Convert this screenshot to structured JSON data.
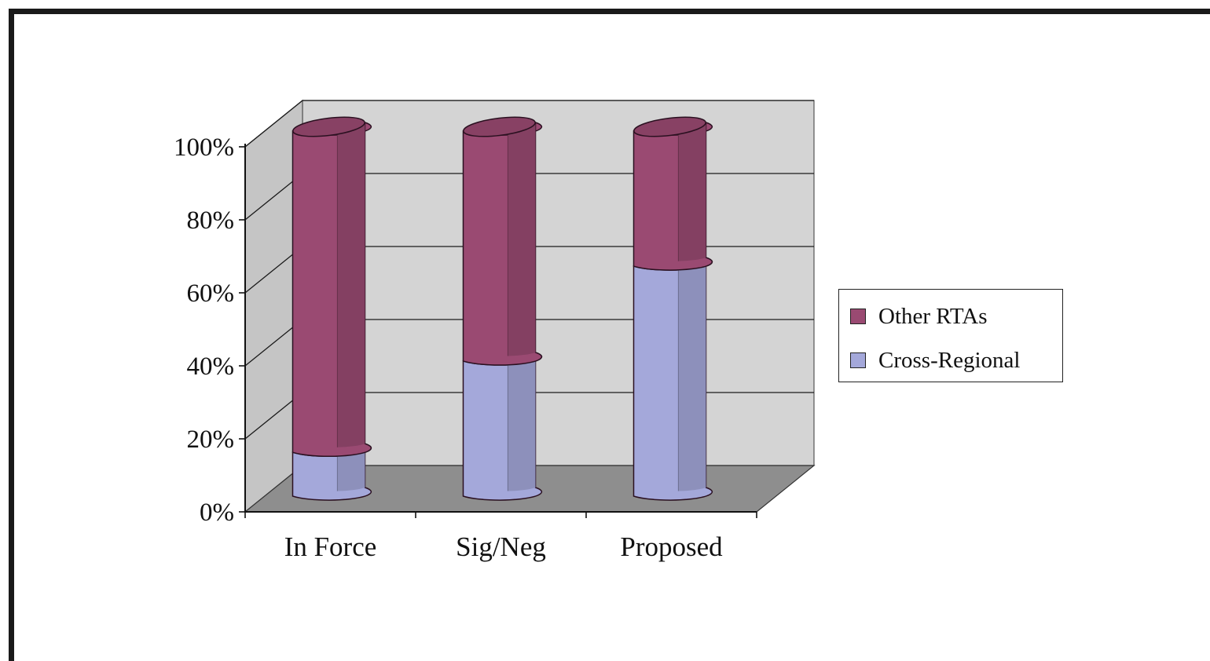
{
  "chart_data": {
    "type": "bar",
    "stacked": true,
    "three_d": true,
    "categories": [
      "In Force",
      "Sig/Neg",
      "Proposed"
    ],
    "series": [
      {
        "name": "Cross-Regional",
        "color": "#a4a8da",
        "values": [
          12,
          37,
          63
        ]
      },
      {
        "name": "Other RTAs",
        "color": "#9a4a72",
        "values": [
          88,
          63,
          37
        ]
      }
    ],
    "ylim": [
      0,
      100
    ],
    "y_ticks": [
      "0%",
      "20%",
      "40%",
      "60%",
      "80%",
      "100%"
    ],
    "grid": true,
    "legend_position": "right",
    "legend_order": [
      "Other RTAs",
      "Cross-Regional"
    ],
    "wall_color": "#d4d4d4",
    "floor_color": "#8e8e8e"
  }
}
